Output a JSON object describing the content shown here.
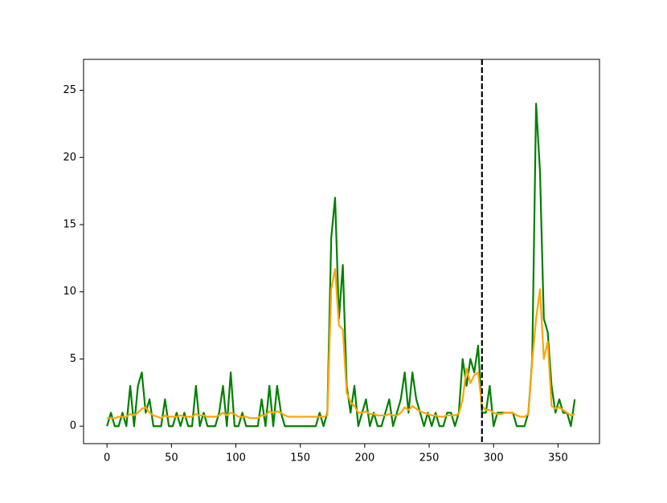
{
  "chart_data": {
    "type": "line",
    "x": [
      0,
      3,
      6,
      9,
      12,
      15,
      18,
      21,
      24,
      27,
      30,
      33,
      36,
      39,
      42,
      45,
      48,
      51,
      54,
      57,
      60,
      63,
      66,
      69,
      72,
      75,
      78,
      81,
      84,
      87,
      90,
      93,
      96,
      99,
      102,
      105,
      108,
      111,
      114,
      117,
      120,
      123,
      126,
      129,
      132,
      135,
      138,
      141,
      144,
      147,
      150,
      153,
      156,
      159,
      162,
      165,
      168,
      171,
      174,
      177,
      180,
      183,
      186,
      189,
      192,
      195,
      198,
      201,
      204,
      207,
      210,
      213,
      216,
      219,
      222,
      225,
      228,
      231,
      234,
      237,
      240,
      243,
      246,
      249,
      252,
      255,
      258,
      261,
      264,
      267,
      270,
      273,
      276,
      279,
      282,
      285,
      288,
      291,
      294,
      297,
      300,
      303,
      306,
      309,
      312,
      315,
      318,
      321,
      324,
      327,
      330,
      333,
      336,
      339,
      342,
      345,
      348,
      351,
      354,
      357,
      360,
      363
    ],
    "series": [
      {
        "color": "#008000",
        "values": [
          0,
          1,
          0,
          0,
          1,
          0,
          3,
          0,
          3,
          4,
          1,
          2,
          0,
          0,
          0,
          2,
          0,
          0,
          1,
          0,
          1,
          0,
          0,
          3,
          0,
          1,
          0,
          0,
          0,
          1,
          3,
          0,
          4,
          0,
          0,
          1,
          0,
          0,
          0,
          0,
          2,
          0,
          3,
          0,
          3,
          1,
          0,
          0,
          0,
          0,
          0,
          0,
          0,
          0,
          0,
          1,
          0,
          1,
          14,
          17,
          8,
          12,
          3,
          1,
          3,
          0,
          1,
          2,
          0,
          1,
          0,
          0,
          1,
          2,
          0,
          1,
          2,
          4,
          1,
          4,
          2,
          1,
          0,
          1,
          0,
          1,
          0,
          0,
          1,
          1,
          0,
          1,
          5,
          3,
          5,
          4,
          6,
          1,
          1,
          3,
          0,
          1,
          1,
          1,
          1,
          1,
          0,
          0,
          0,
          1,
          5,
          24,
          19,
          8,
          7,
          3,
          1,
          2,
          1,
          1,
          0,
          2
        ]
      },
      {
        "color": "#ffa500",
        "values": [
          0.6,
          0.6,
          0.6,
          0.7,
          0.7,
          0.7,
          0.9,
          0.8,
          1.0,
          1.3,
          1.4,
          1.0,
          0.8,
          0.7,
          0.6,
          0.8,
          0.7,
          0.7,
          0.7,
          0.8,
          0.7,
          0.7,
          0.7,
          0.9,
          0.8,
          0.8,
          0.7,
          0.7,
          0.7,
          0.8,
          1.0,
          0.8,
          1.0,
          0.9,
          0.7,
          0.7,
          0.7,
          0.6,
          0.6,
          0.6,
          0.8,
          0.8,
          1.1,
          1.0,
          1.1,
          1.0,
          0.8,
          0.7,
          0.7,
          0.7,
          0.7,
          0.7,
          0.7,
          0.7,
          0.7,
          0.7,
          0.7,
          0.8,
          10.2,
          11.7,
          7.5,
          7.2,
          2.5,
          1.8,
          1.5,
          1.0,
          1.0,
          1.1,
          0.9,
          0.9,
          0.8,
          0.8,
          0.8,
          0.9,
          0.8,
          0.8,
          1.0,
          1.4,
          1.2,
          1.5,
          1.3,
          1.1,
          1.0,
          0.9,
          0.8,
          0.8,
          0.7,
          0.7,
          0.8,
          0.8,
          0.8,
          0.9,
          2.0,
          4.3,
          3.2,
          3.8,
          4.0,
          1.5,
          1.2,
          1.2,
          1.0,
          0.9,
          0.9,
          1.0,
          1.0,
          1.0,
          0.8,
          0.7,
          0.7,
          0.9,
          4.8,
          8.0,
          10.2,
          5.0,
          6.3,
          1.5,
          1.3,
          1.4,
          1.2,
          1.0,
          0.8,
          0.9
        ]
      }
    ],
    "vline": {
      "x": 291,
      "color": "#000000",
      "dashed": true
    },
    "xlim": [
      -18.2,
      382.2
    ],
    "xticks": [
      0,
      50,
      100,
      150,
      200,
      250,
      300,
      350
    ],
    "ylim": [
      -1.3,
      27.3
    ],
    "yticks": [
      0,
      5,
      10,
      15,
      20,
      25
    ],
    "grid": false
  }
}
